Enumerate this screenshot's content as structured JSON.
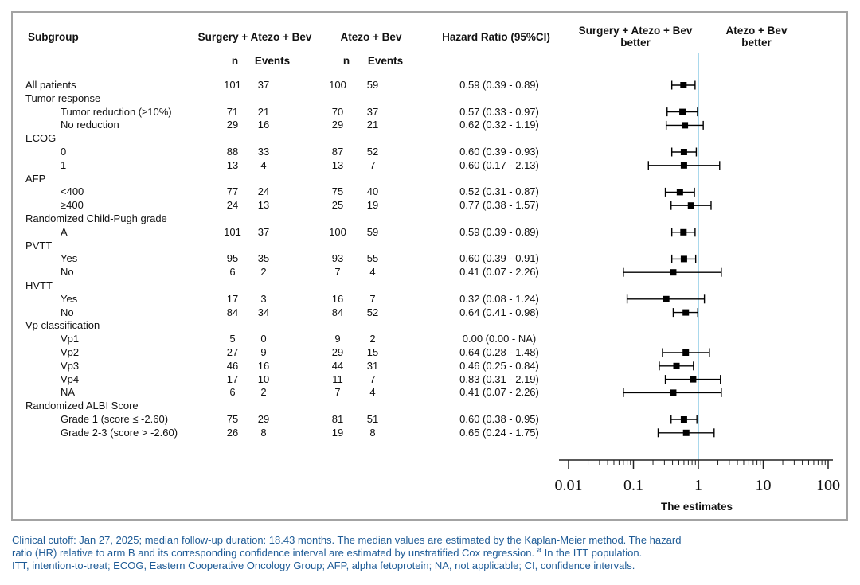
{
  "figure": {
    "headers": {
      "subgroup": "Subgroup",
      "arm_a": "Surgery + Atezo + Bev",
      "arm_b": "Atezo + Bev",
      "hazard_ratio": "Hazard Ratio (95%CI)",
      "n": "n",
      "events": "Events",
      "left_better_line1": "Surgery + Atezo + Bev",
      "left_better_line2": "better",
      "right_better_line1": "Atezo + Bev",
      "right_better_line2": "better"
    }
  },
  "chart_data": {
    "type": "scatter",
    "subtype": "forest-plot",
    "title": "",
    "xlabel": "The estimates",
    "x_axis": {
      "scale": "log",
      "min": 0.01,
      "max": 100,
      "ticks": [
        0.01,
        0.1,
        1,
        10,
        100
      ],
      "tick_labels": [
        "0.01",
        "0.1",
        "1",
        "10",
        "100"
      ],
      "reference_line": 1
    },
    "rows": [
      {
        "label": "All patients",
        "indent": 0,
        "n1": 101,
        "e1": 37,
        "n2": 100,
        "e2": 59,
        "hr_text": "0.59 (0.39 - 0.89)",
        "hr": 0.59,
        "lo": 0.39,
        "hi": 0.89
      },
      {
        "label": "Tumor response",
        "indent": 0,
        "section": true
      },
      {
        "label": "Tumor reduction (≥10%)",
        "indent": 1,
        "n1": 71,
        "e1": 21,
        "n2": 70,
        "e2": 37,
        "hr_text": "0.57 (0.33 - 0.97)",
        "hr": 0.57,
        "lo": 0.33,
        "hi": 0.97
      },
      {
        "label": "No reduction",
        "indent": 1,
        "n1": 29,
        "e1": 16,
        "n2": 29,
        "e2": 21,
        "hr_text": "0.62 (0.32 - 1.19)",
        "hr": 0.62,
        "lo": 0.32,
        "hi": 1.19
      },
      {
        "label": "ECOG",
        "indent": 0,
        "section": true
      },
      {
        "label": "0",
        "indent": 1,
        "n1": 88,
        "e1": 33,
        "n2": 87,
        "e2": 52,
        "hr_text": "0.60 (0.39 - 0.93)",
        "hr": 0.6,
        "lo": 0.39,
        "hi": 0.93
      },
      {
        "label": "1",
        "indent": 1,
        "n1": 13,
        "e1": 4,
        "n2": 13,
        "e2": 7,
        "hr_text": "0.60 (0.17 - 2.13)",
        "hr": 0.6,
        "lo": 0.17,
        "hi": 2.13
      },
      {
        "label": "AFP",
        "indent": 0,
        "section": true
      },
      {
        "label": "<400",
        "indent": 1,
        "n1": 77,
        "e1": 24,
        "n2": 75,
        "e2": 40,
        "hr_text": "0.52 (0.31 - 0.87)",
        "hr": 0.52,
        "lo": 0.31,
        "hi": 0.87
      },
      {
        "label": "≥400",
        "indent": 1,
        "n1": 24,
        "e1": 13,
        "n2": 25,
        "e2": 19,
        "hr_text": "0.77 (0.38 - 1.57)",
        "hr": 0.77,
        "lo": 0.38,
        "hi": 1.57
      },
      {
        "label": "Randomized Child-Pugh grade",
        "indent": 0,
        "section": true
      },
      {
        "label": "A",
        "indent": 1,
        "n1": 101,
        "e1": 37,
        "n2": 100,
        "e2": 59,
        "hr_text": "0.59 (0.39 - 0.89)",
        "hr": 0.59,
        "lo": 0.39,
        "hi": 0.89
      },
      {
        "label": "PVTT",
        "indent": 0,
        "section": true
      },
      {
        "label": "Yes",
        "indent": 1,
        "n1": 95,
        "e1": 35,
        "n2": 93,
        "e2": 55,
        "hr_text": "0.60 (0.39 - 0.91)",
        "hr": 0.6,
        "lo": 0.39,
        "hi": 0.91
      },
      {
        "label": "No",
        "indent": 1,
        "n1": 6,
        "e1": 2,
        "n2": 7,
        "e2": 4,
        "hr_text": "0.41 (0.07 - 2.26)",
        "hr": 0.41,
        "lo": 0.07,
        "hi": 2.26
      },
      {
        "label": "HVTT",
        "indent": 0,
        "section": true
      },
      {
        "label": "Yes",
        "indent": 1,
        "n1": 17,
        "e1": 3,
        "n2": 16,
        "e2": 7,
        "hr_text": "0.32 (0.08 - 1.24)",
        "hr": 0.32,
        "lo": 0.08,
        "hi": 1.24
      },
      {
        "label": "No",
        "indent": 1,
        "n1": 84,
        "e1": 34,
        "n2": 84,
        "e2": 52,
        "hr_text": "0.64 (0.41 - 0.98)",
        "hr": 0.64,
        "lo": 0.41,
        "hi": 0.98
      },
      {
        "label": "Vp classification",
        "indent": 0,
        "section": true
      },
      {
        "label": "Vp1",
        "indent": 1,
        "n1": 5,
        "e1": 0,
        "n2": 9,
        "e2": 2,
        "hr_text": "0.00 (0.00 - NA)",
        "hr": null,
        "lo": null,
        "hi": null
      },
      {
        "label": "Vp2",
        "indent": 1,
        "n1": 27,
        "e1": 9,
        "n2": 29,
        "e2": 15,
        "hr_text": "0.64 (0.28 - 1.48)",
        "hr": 0.64,
        "lo": 0.28,
        "hi": 1.48
      },
      {
        "label": "Vp3",
        "indent": 1,
        "n1": 46,
        "e1": 16,
        "n2": 44,
        "e2": 31,
        "hr_text": "0.46 (0.25 - 0.84)",
        "hr": 0.46,
        "lo": 0.25,
        "hi": 0.84
      },
      {
        "label": "Vp4",
        "indent": 1,
        "n1": 17,
        "e1": 10,
        "n2": 11,
        "e2": 7,
        "hr_text": "0.83 (0.31 - 2.19)",
        "hr": 0.83,
        "lo": 0.31,
        "hi": 2.19
      },
      {
        "label": "NA",
        "indent": 1,
        "n1": 6,
        "e1": 2,
        "n2": 7,
        "e2": 4,
        "hr_text": "0.41 (0.07 - 2.26)",
        "hr": 0.41,
        "lo": 0.07,
        "hi": 2.26
      },
      {
        "label": "Randomized ALBI Score",
        "indent": 0,
        "section": true
      },
      {
        "label": "Grade 1 (score ≤ -2.60)",
        "indent": 1,
        "n1": 75,
        "e1": 29,
        "n2": 81,
        "e2": 51,
        "hr_text": "0.60 (0.38 - 0.95)",
        "hr": 0.6,
        "lo": 0.38,
        "hi": 0.95
      },
      {
        "label": "Grade 2-3 (score > -2.60)",
        "indent": 1,
        "n1": 26,
        "e1": 8,
        "n2": 19,
        "e2": 8,
        "hr_text": "0.65 (0.24 - 1.75)",
        "hr": 0.65,
        "lo": 0.24,
        "hi": 1.75
      }
    ]
  },
  "footer": {
    "line1": "Clinical cutoff: Jan 27, 2025; median follow-up duration: 18.43 months. The median values are estimated by the Kaplan-Meier method. The hazard",
    "line2_pre": "ratio (HR) relative to arm B and its corresponding confidence interval are estimated by unstratified Cox regression. ",
    "line2_sup": "a",
    "line2_post": " In the ITT population.",
    "line3": "ITT, intention-to-treat; ECOG, Eastern Cooperative Oncology Group; AFP, alpha fetoprotein; NA, not applicable; CI, confidence intervals."
  },
  "colors": {
    "reference_line": "#a9d8ec",
    "footer_text": "#1e5b96",
    "border": "#a3a3a3",
    "marker": "#000000",
    "axis": "#222222"
  }
}
